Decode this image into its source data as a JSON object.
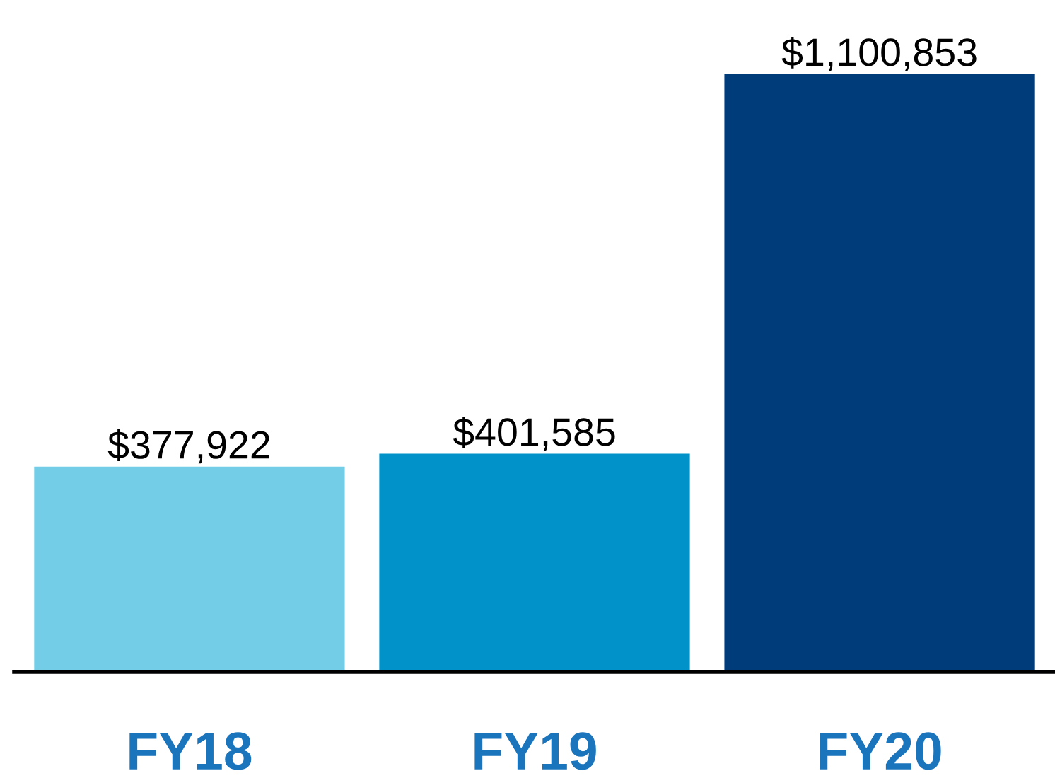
{
  "chart_data": {
    "type": "bar",
    "categories": [
      "FY18",
      "FY19",
      "FY20"
    ],
    "values": [
      377922,
      401585,
      1100853
    ],
    "colors": [
      "#74cde6",
      "#0092c9",
      "#003b7a"
    ],
    "data_labels": true,
    "value_labels": [
      "$377,922",
      "$401,585",
      "$1,100,853"
    ],
    "grid": false,
    "legend": false
  }
}
